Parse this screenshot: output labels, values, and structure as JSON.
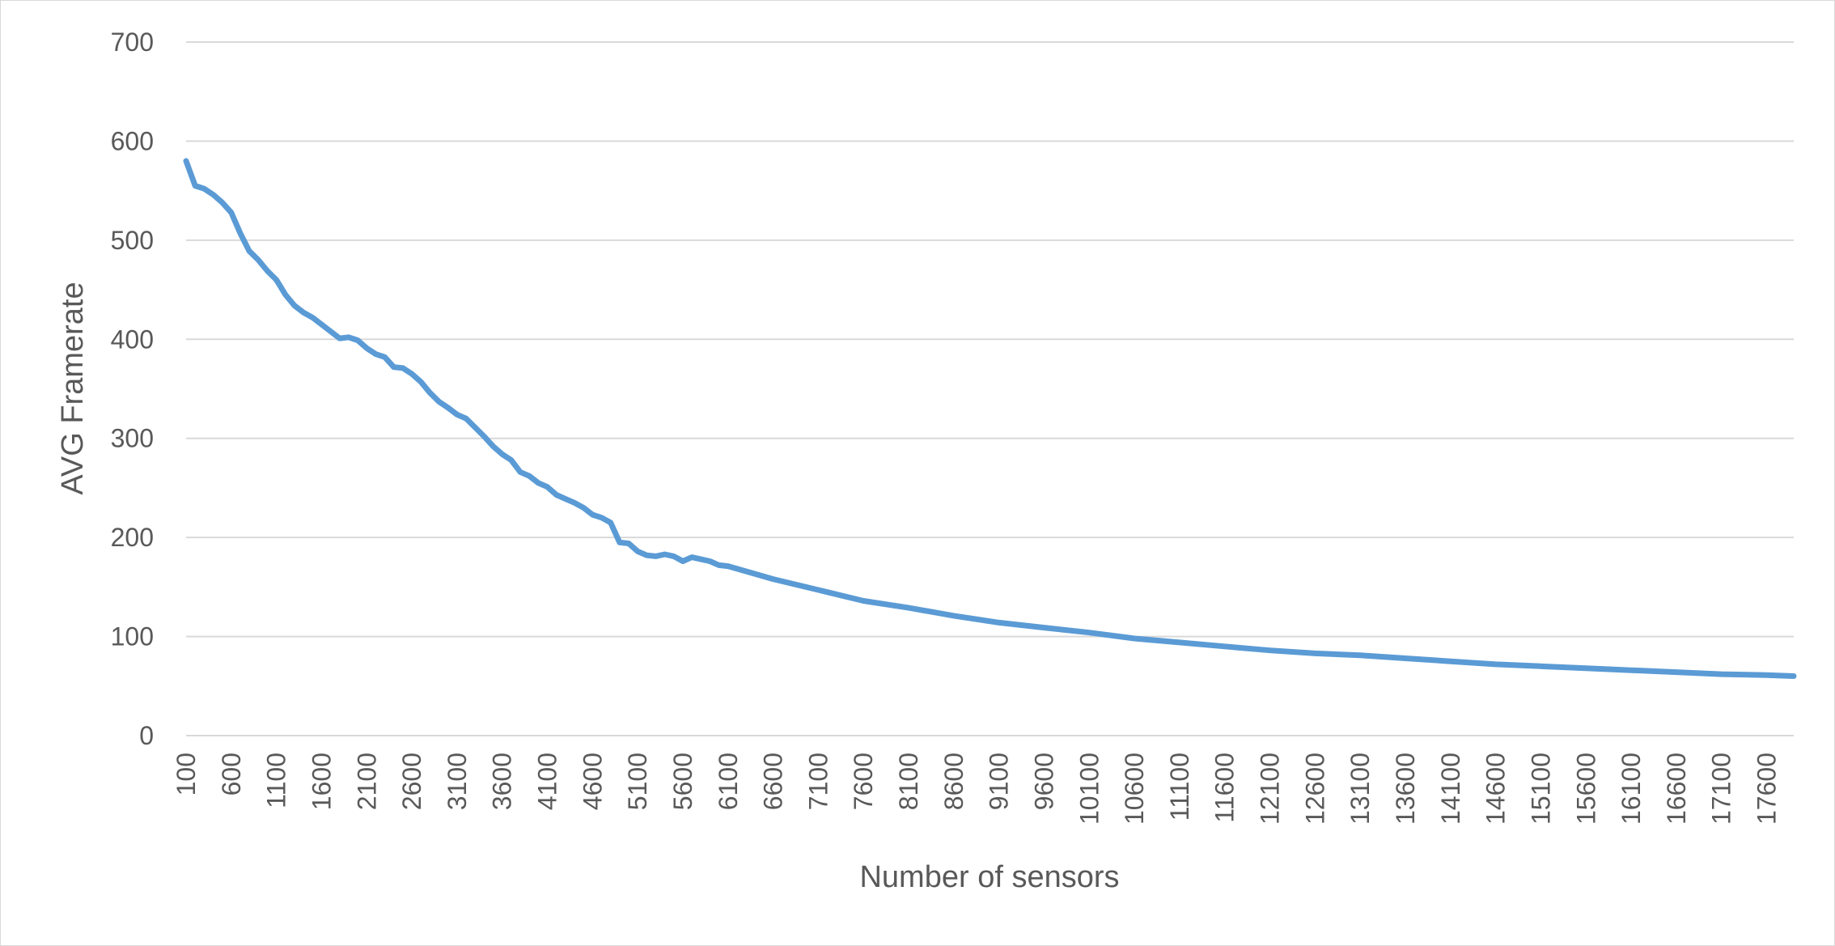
{
  "chart_data": {
    "type": "line",
    "title": "",
    "xlabel": "Number of sensors",
    "ylabel": "AVG Framerate",
    "ylim": [
      0,
      700
    ],
    "yticks": [
      "0",
      "100",
      "200",
      "300",
      "400",
      "500",
      "600",
      "700"
    ],
    "xlim": [
      100,
      17900
    ],
    "xticks": [
      "100",
      "600",
      "1100",
      "1600",
      "2100",
      "2600",
      "3100",
      "3600",
      "4100",
      "4600",
      "5100",
      "5600",
      "6100",
      "6600",
      "7100",
      "7600",
      "8100",
      "8600",
      "9100",
      "9600",
      "10100",
      "10600",
      "11100",
      "11600",
      "12100",
      "12600",
      "13100",
      "13600",
      "14100",
      "14600",
      "15100",
      "15600",
      "16100",
      "16600",
      "17100",
      "17600"
    ],
    "grid": true,
    "legend": false,
    "series": [
      {
        "color": "#5B9BD5",
        "x": [
          100,
          200,
          300,
          400,
          500,
          600,
          700,
          800,
          900,
          1000,
          1100,
          1200,
          1300,
          1400,
          1500,
          1600,
          1700,
          1800,
          1900,
          2000,
          2100,
          2200,
          2300,
          2400,
          2500,
          2600,
          2700,
          2800,
          2900,
          3000,
          3100,
          3200,
          3300,
          3400,
          3500,
          3600,
          3700,
          3800,
          3900,
          4000,
          4100,
          4200,
          4300,
          4400,
          4500,
          4600,
          4700,
          4800,
          4900,
          5000,
          5100,
          5200,
          5300,
          5400,
          5500,
          5600,
          5700,
          5800,
          5900,
          6000,
          6100,
          6600,
          7100,
          7600,
          8100,
          8600,
          9100,
          9600,
          10100,
          10600,
          11100,
          11600,
          12100,
          12600,
          13100,
          13600,
          14100,
          14600,
          15100,
          15600,
          16100,
          16600,
          17100,
          17600,
          17900
        ],
        "y": [
          580,
          555,
          552,
          546,
          538,
          528,
          507,
          489,
          480,
          469,
          460,
          445,
          434,
          427,
          422,
          415,
          408,
          401,
          402,
          399,
          391,
          385,
          382,
          372,
          371,
          365,
          357,
          346,
          337,
          331,
          324,
          320,
          311,
          302,
          292,
          284,
          278,
          266,
          262,
          255,
          251,
          243,
          239,
          235,
          230,
          223,
          220,
          215,
          195,
          194,
          186,
          182,
          181,
          183,
          181,
          176,
          180,
          178,
          176,
          172,
          171,
          158,
          147,
          136,
          129,
          121,
          114,
          109,
          104,
          98,
          94,
          90,
          86,
          83,
          81,
          78,
          75,
          72,
          70,
          68,
          66,
          64,
          62,
          61,
          60
        ]
      }
    ]
  }
}
